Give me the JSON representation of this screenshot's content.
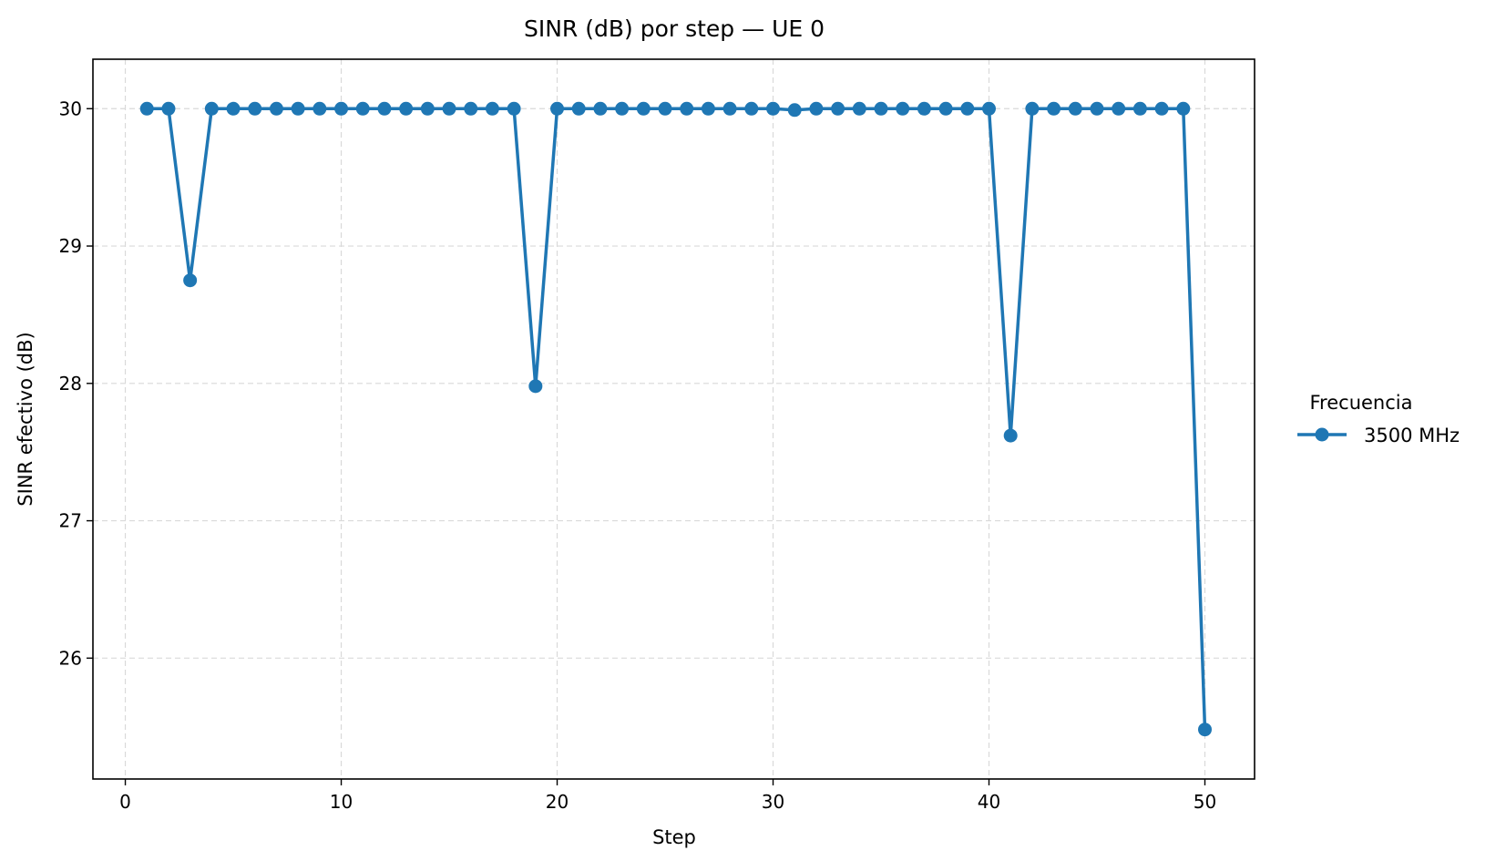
{
  "chart_data": {
    "type": "line",
    "title": "SINR (dB) por step — UE 0",
    "xlabel": "Step",
    "ylabel": "SINR efectivo (dB)",
    "xlim": [
      -1.5,
      52.3
    ],
    "ylim": [
      25.12,
      30.36
    ],
    "xticks": [
      0,
      10,
      20,
      30,
      40,
      50
    ],
    "yticks": [
      26,
      27,
      28,
      29,
      30
    ],
    "grid": true,
    "legend": {
      "title": "Frecuencia",
      "placement": "right-outside"
    },
    "series": [
      {
        "name": "3500 MHz",
        "color": "#1f77b4",
        "marker": "circle",
        "x": [
          1,
          2,
          3,
          4,
          5,
          6,
          7,
          8,
          9,
          10,
          11,
          12,
          13,
          14,
          15,
          16,
          17,
          18,
          19,
          20,
          21,
          22,
          23,
          24,
          25,
          26,
          27,
          28,
          29,
          30,
          31,
          32,
          33,
          34,
          35,
          36,
          37,
          38,
          39,
          40,
          41,
          42,
          43,
          44,
          45,
          46,
          47,
          48,
          49,
          50
        ],
        "values": [
          30,
          30,
          28.75,
          30,
          30,
          30,
          30,
          30,
          30,
          30,
          30,
          30,
          30,
          30,
          30,
          30,
          30,
          30,
          27.98,
          30,
          30,
          30,
          30,
          30,
          30,
          30,
          30,
          30,
          30,
          30,
          29.99,
          30,
          30,
          30,
          30,
          30,
          30,
          30,
          30,
          30,
          27.62,
          30,
          30,
          30,
          30,
          30,
          30,
          30,
          30,
          25.48
        ]
      }
    ]
  }
}
